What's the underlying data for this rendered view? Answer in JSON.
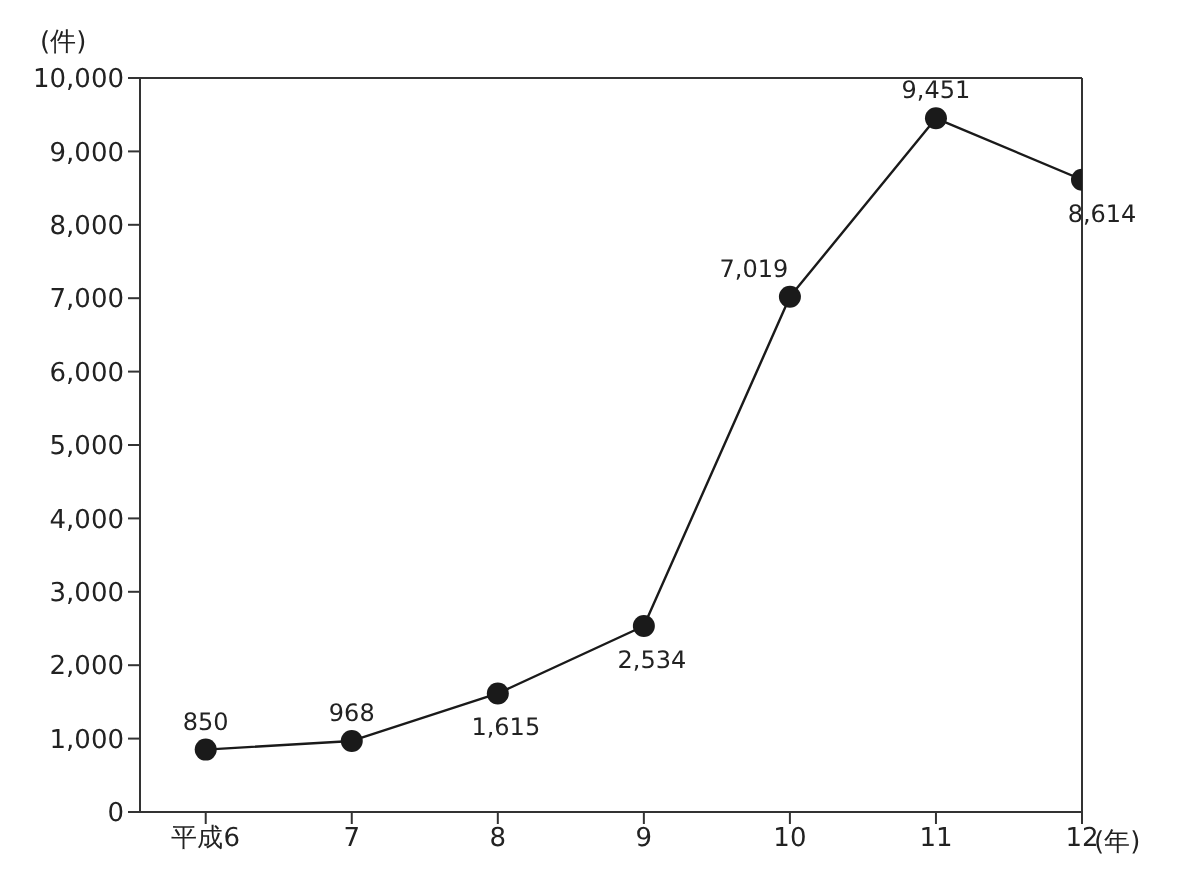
{
  "chart_data": {
    "type": "line",
    "xlabel": "(年)",
    "ylabel": "(件)",
    "categories": [
      "平成6",
      "7",
      "8",
      "9",
      "10",
      "11",
      "12"
    ],
    "series": [
      {
        "color": "#1a1a1a",
        "values": [
          850,
          968,
          1615,
          2534,
          7019,
          9451,
          8614
        ],
        "value_labels": [
          "850",
          "968",
          "1,615",
          "2,534",
          "7,019",
          "9,451",
          "8,614"
        ]
      }
    ],
    "ylim": [
      0,
      10000
    ],
    "yticks": [
      {
        "value": 0,
        "label": "0"
      },
      {
        "value": 1000,
        "label": "1,000"
      },
      {
        "value": 2000,
        "label": "2,000"
      },
      {
        "value": 3000,
        "label": "3,000"
      },
      {
        "value": 4000,
        "label": "4,000"
      },
      {
        "value": 5000,
        "label": "5,000"
      },
      {
        "value": 6000,
        "label": "6,000"
      },
      {
        "value": 7000,
        "label": "7,000"
      },
      {
        "value": 8000,
        "label": "8,000"
      },
      {
        "value": 9000,
        "label": "9,000"
      },
      {
        "value": 10000,
        "label": "10,000"
      }
    ],
    "marker": "circle",
    "line_style": "solid"
  }
}
